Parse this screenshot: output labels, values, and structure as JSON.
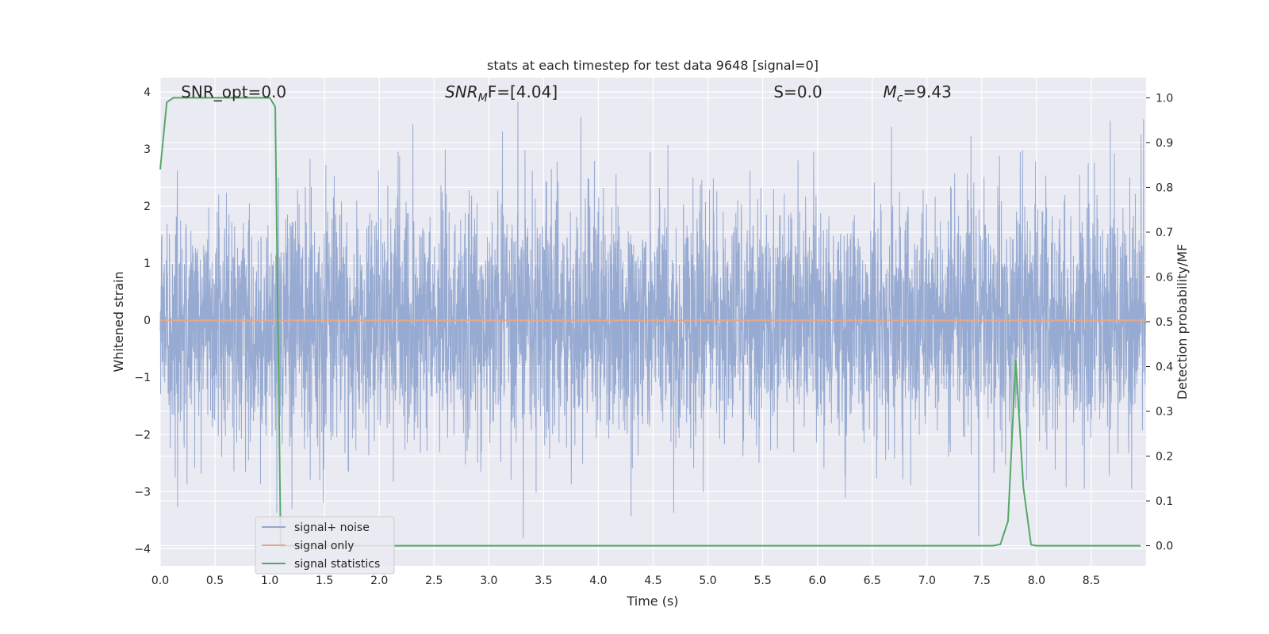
{
  "chart_data": {
    "type": "line",
    "title": "stats at each timestep for test data 9648 [signal=0]",
    "xlabel": "Time (s)",
    "ylabel": "Whitened strain",
    "y2label": "Detection probability/MF",
    "xlim": [
      0,
      9
    ],
    "ylim": [
      -4.3,
      4.25
    ],
    "y2lim": [
      -0.045,
      1.045
    ],
    "xticks": [
      "0.0",
      "0.5",
      "1.0",
      "1.5",
      "2.0",
      "2.5",
      "3.0",
      "3.5",
      "4.0",
      "4.5",
      "5.0",
      "5.5",
      "6.0",
      "6.5",
      "7.0",
      "7.5",
      "8.0",
      "8.5"
    ],
    "yticks": [
      "−4",
      "−3",
      "−2",
      "−1",
      "0",
      "1",
      "2",
      "3",
      "4"
    ],
    "y2ticks": [
      "0.0",
      "0.1",
      "0.2",
      "0.3",
      "0.4",
      "0.5",
      "0.6",
      "0.7",
      "0.8",
      "0.9",
      "1.0"
    ],
    "grid": true,
    "legend_position": "lower-left",
    "annotations": [
      {
        "name": "snr-opt",
        "text": "SNR_opt=0.0",
        "x": 0.19,
        "y": 4.0
      },
      {
        "name": "snr-mf",
        "text": "SNR_MF=[4.04]",
        "x": 2.6,
        "y": 4.0
      },
      {
        "name": "s-stat",
        "text": "S=0.0",
        "x": 5.6,
        "y": 4.0
      },
      {
        "name": "chirp-mass",
        "text": "M_c=9.43",
        "x": 6.6,
        "y": 4.0
      }
    ],
    "series": [
      {
        "name": "signal+ noise",
        "color": "#92a6cf",
        "axis": "left",
        "style": "dense-noise",
        "sample_rate_hz": 2048,
        "duration_s": 9.0,
        "approx_range": [
          -4.0,
          3.9
        ]
      },
      {
        "name": "signal only",
        "color": "#e3a98f",
        "axis": "left",
        "x": [
          0,
          9
        ],
        "values": [
          0,
          0
        ]
      },
      {
        "name": "signal statistics",
        "color": "#55a868",
        "axis": "right",
        "x": [
          0.0,
          0.06,
          0.12,
          0.2,
          0.3,
          0.5,
          0.6,
          0.8,
          1.0,
          1.05,
          1.1,
          1.15,
          1.3,
          1.6,
          2.0,
          3.0,
          4.0,
          5.0,
          6.0,
          7.0,
          7.5,
          7.6,
          7.67,
          7.74,
          7.81,
          7.88,
          7.95,
          8.0,
          8.5,
          8.95
        ],
        "values": [
          0.84,
          0.99,
          1.0,
          1.0,
          1.0,
          1.0,
          1.0,
          1.0,
          1.0,
          0.98,
          0.0,
          0.0,
          0.0,
          0.0,
          0.0,
          0.0,
          0.0,
          0.0,
          0.0,
          0.0,
          0.0,
          0.0,
          0.003,
          0.055,
          0.415,
          0.13,
          0.002,
          0.0,
          0.0,
          0.0
        ]
      }
    ]
  },
  "colors": {
    "plot_background": "#eaeaf2",
    "grid": "#ffffff"
  }
}
